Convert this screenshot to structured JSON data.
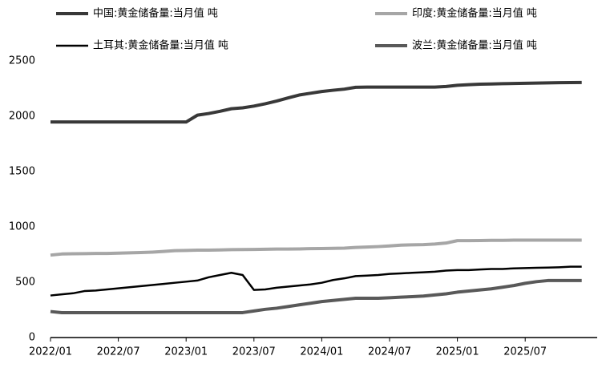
{
  "chart_data": {
    "type": "line",
    "categories": [
      "2022/01",
      null,
      null,
      null,
      null,
      null,
      "2022/07",
      null,
      null,
      null,
      null,
      null,
      "2023/01",
      null,
      null,
      null,
      null,
      null,
      "2023/07",
      null,
      null,
      null,
      null,
      null,
      "2024/01",
      null,
      null,
      null,
      null,
      null,
      "2024/07",
      null,
      null,
      null,
      null,
      null,
      "2025/01",
      null,
      null,
      null,
      null,
      null,
      "2025/07",
      null,
      null,
      null,
      null,
      null
    ],
    "ylim": [
      0,
      2500
    ],
    "yticks": [
      0,
      500,
      1000,
      1500,
      2000,
      2500
    ],
    "grid": false,
    "series": [
      {
        "name": "中国:黄金储备量:当月值 吨",
        "color": "#383838",
        "width": 4,
        "values": [
          1948,
          1948,
          1948,
          1948,
          1948,
          1948,
          1948,
          1948,
          1948,
          1948,
          1948,
          1948,
          1948,
          2010,
          2025,
          2045,
          2068,
          2076,
          2092,
          2113,
          2137,
          2165,
          2192,
          2208,
          2224,
          2235,
          2245,
          2262,
          2264,
          2264,
          2264,
          2264,
          2264,
          2264,
          2264,
          2269,
          2280,
          2285,
          2290,
          2292,
          2294,
          2296,
          2298,
          2300,
          2302,
          2303,
          2304,
          2305
        ]
      },
      {
        "name": "印度:黄金储备量:当月值 吨",
        "color": "#a6a6a6",
        "width": 4,
        "values": [
          745,
          755,
          757,
          758,
          760,
          760,
          763,
          765,
          768,
          772,
          778,
          785,
          787,
          790,
          790,
          792,
          794,
          795,
          796,
          798,
          800,
          800,
          801,
          803,
          804,
          806,
          808,
          814,
          818,
          822,
          828,
          835,
          838,
          840,
          845,
          854,
          876,
          876,
          877,
          879,
          879,
          880,
          880,
          880,
          880,
          880,
          880,
          880
        ]
      },
      {
        "name": "土耳其:黄金储备量:当月值 吨",
        "color": "#000000",
        "width": 2.5,
        "values": [
          380,
          390,
          400,
          420,
          425,
          435,
          445,
          455,
          465,
          475,
          485,
          495,
          505,
          515,
          545,
          565,
          585,
          565,
          430,
          435,
          450,
          460,
          470,
          480,
          495,
          520,
          535,
          555,
          560,
          565,
          575,
          580,
          585,
          590,
          595,
          605,
          610,
          610,
          615,
          620,
          620,
          625,
          628,
          630,
          632,
          635,
          640,
          640
        ]
      },
      {
        "name": "波兰:黄金储备量:当月值 吨",
        "color": "#595959",
        "width": 4,
        "values": [
          235,
          225,
          225,
          225,
          225,
          225,
          225,
          225,
          225,
          225,
          225,
          225,
          225,
          225,
          225,
          225,
          225,
          225,
          240,
          255,
          265,
          280,
          295,
          310,
          325,
          335,
          345,
          355,
          355,
          355,
          360,
          365,
          370,
          375,
          385,
          395,
          410,
          420,
          430,
          440,
          455,
          470,
          490,
          505,
          515,
          515,
          515,
          515
        ]
      }
    ]
  }
}
